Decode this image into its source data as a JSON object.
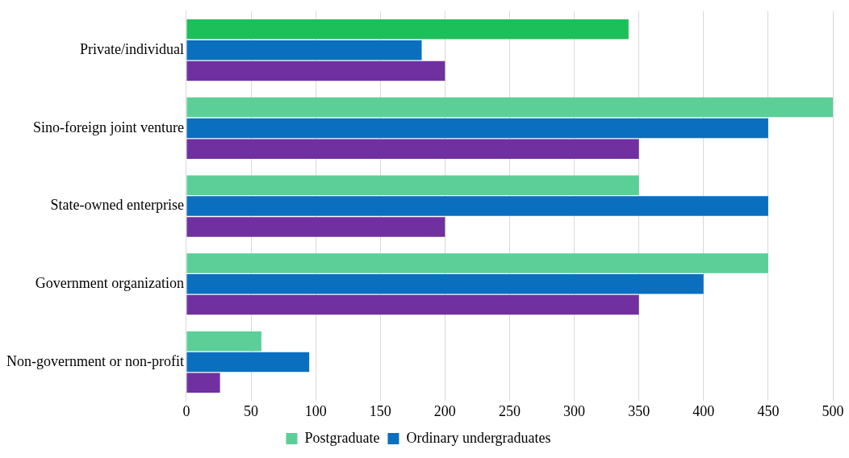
{
  "chart_data": {
    "type": "bar",
    "orientation": "horizontal",
    "categories": [
      "Private/individual",
      "Sino-foreign joint venture",
      "State-owned enterprise",
      "Government organization",
      "Non-government or non-profit"
    ],
    "series": [
      {
        "name": "Postgraduate",
        "color": "#5bcf97",
        "colors": [
          "#1dbf5a",
          "#5bcf97",
          "#5bcf97",
          "#5bcf97",
          "#5bcf97"
        ],
        "values": [
          342,
          500,
          350,
          450,
          58
        ]
      },
      {
        "name": "Ordinary undergraduates",
        "color": "#0b6fc0",
        "values": [
          182,
          450,
          450,
          400,
          95
        ]
      },
      {
        "color": "#7030a0",
        "values": [
          200,
          350,
          200,
          350,
          26
        ]
      }
    ],
    "xlim": [
      0,
      500
    ],
    "xticks": [
      0,
      50,
      100,
      150,
      200,
      250,
      300,
      350,
      400,
      450,
      500
    ],
    "grid": "x",
    "legend": "bottom"
  }
}
